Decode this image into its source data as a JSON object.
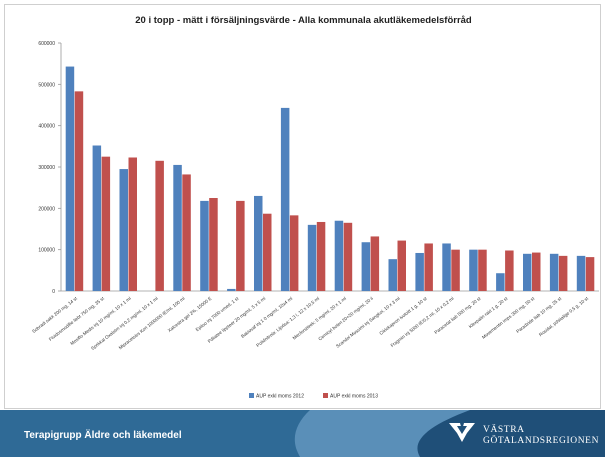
{
  "slide": {
    "footer_text": "Terapigrupp Äldre och läkemedel",
    "brand_line1": "VÄSTRA",
    "brand_line2": "GÖTALANDSREGIONEN"
  },
  "chart_data": {
    "type": "bar",
    "title": "20 i topp - mätt i försäljningsvärde - Alla kommunala akutläkemedelsförråd",
    "xlabel": "",
    "ylabel": "",
    "ylim": [
      0,
      600000
    ],
    "yticks": [
      0,
      100000,
      200000,
      300000,
      400000,
      500000,
      600000
    ],
    "ytick_labels": [
      "0",
      "100000",
      "200000",
      "300000",
      "400000",
      "500000",
      "600000"
    ],
    "grid": false,
    "legend_position": "bottom",
    "categories": [
      "Sobradi sakk 200 mg, 14 st",
      "Fluidosmodifie liebt 750 mg, 35 st",
      "Moxiflo Medis inj 10 mg/ml, 10 x 1 ml",
      "Sprikkal Oxalstrn inj 0,2 mg/ml, 10 x 1 ml",
      "Mipracetsiss Kon 1000000 IE/ml, 100 ml",
      "Xalcestra gel 2%, 15000 E",
      "Epiloo inj 7000 umed, 1 st",
      "Pdiiatee lippteer 20 mg/ml, 5 x 5 ml",
      "Bakiovaf inj 1 0 mg/ml, 10x4 ml",
      "Polidnitrola: Lijotisa: 1,3 l, 12 x 10,5 ml",
      "Mecforstitrek: 5 mg/ml, 20 x 1 ml",
      "Cemicyl bolen 20+20 mg/ml, 20 ii",
      "Scandol Mossimi inj Sangkoi, 10 x 3 ml",
      "Ciklokapron ivoloitt 1 g, 10 st",
      "Fragmin inj 5000 IE/0,2 ml, 10 x 0,2 ml",
      "Paracetat liab 500 mg, 20 st",
      "Klexpalin rakt 1 g, 20 st",
      "Movementin imps 300 mg, 50 st",
      "Paradzide liab 10 mg, 25 st",
      "Rosidal, pdsiialige 0,5 g, 10 st"
    ],
    "series": [
      {
        "name": "AUP exkl moms 2012",
        "color": "#4f81bd",
        "values": [
          543000,
          352000,
          295000,
          0,
          305000,
          218000,
          5000,
          230000,
          443000,
          160000,
          170000,
          118000,
          77000,
          92000,
          115000,
          100000,
          43000,
          90000,
          90000,
          85000
        ]
      },
      {
        "name": "AUP exkl moms 2013",
        "color": "#c0504d",
        "values": [
          483000,
          325000,
          323000,
          315000,
          282000,
          225000,
          218000,
          187000,
          183000,
          167000,
          165000,
          132000,
          122000,
          115000,
          100000,
          100000,
          98000,
          93000,
          85000,
          82000
        ]
      }
    ]
  }
}
